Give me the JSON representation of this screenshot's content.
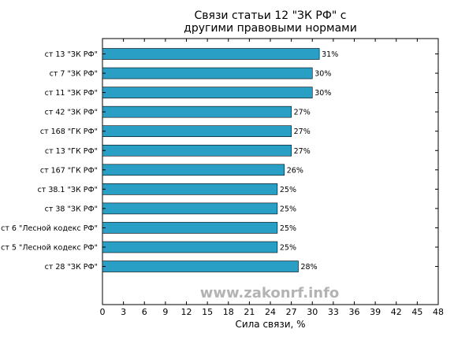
{
  "chart_data": {
    "type": "bar",
    "orientation": "horizontal",
    "title": [
      "Связи статьи 12 \"ЗК РФ\" с",
      "другими правовыми нормами"
    ],
    "xlabel": "Сила связи, %",
    "xlim": [
      0,
      48
    ],
    "xticks": [
      0,
      3,
      6,
      9,
      12,
      15,
      18,
      21,
      24,
      27,
      30,
      33,
      36,
      39,
      42,
      45,
      48
    ],
    "bar_color": "#2a9fc5",
    "categories": [
      "ст 13 \"ЗК РФ\"",
      "ст 7 \"ЗК РФ\"",
      "ст 11 \"ЗК РФ\"",
      "ст 42 \"ЗК РФ\"",
      "ст 168 \"ГК РФ\"",
      "ст 13 \"ГК РФ\"",
      "ст 167 \"ГК РФ\"",
      "ст 38.1 \"ЗК РФ\"",
      "ст 38 \"ЗК РФ\"",
      "ст 6 \"Лесной кодекс РФ\"",
      "ст 5 \"Лесной кодекс РФ\"",
      "ст 28 \"ЗК РФ\""
    ],
    "values": [
      31,
      30,
      30,
      27,
      27,
      27,
      26,
      25,
      25,
      25,
      25,
      28
    ],
    "value_labels": [
      "31%",
      "30%",
      "30%",
      "27%",
      "27%",
      "27%",
      "26%",
      "25%",
      "25%",
      "25%",
      "25%",
      "28%"
    ]
  },
  "watermark": "www.zakonrf.info"
}
